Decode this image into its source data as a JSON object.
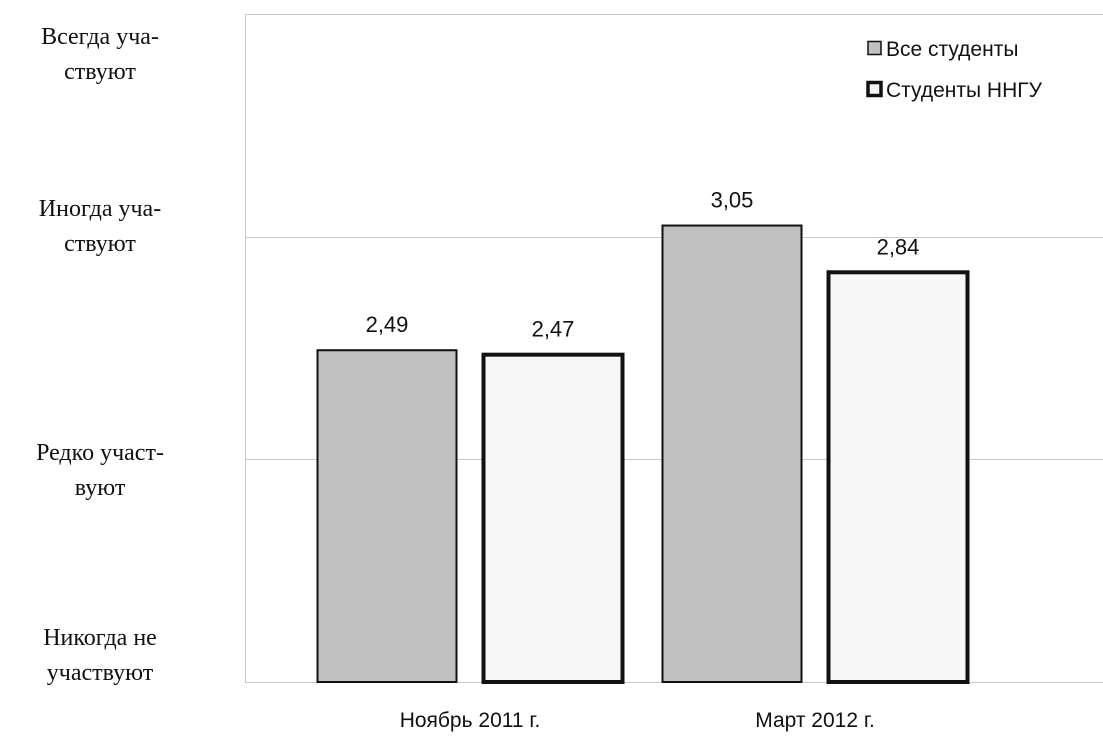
{
  "chart_data": {
    "type": "bar",
    "categories": [
      "Ноябрь 2011 г.",
      "Март 2012 г."
    ],
    "series": [
      {
        "name": "Все студенты",
        "values": [
          2.49,
          3.05
        ],
        "labels": [
          "2,49",
          "3,05"
        ],
        "fill": "#c0c0c0",
        "stroke": "#111111",
        "stroke_style": "thin"
      },
      {
        "name": "Студенты ННГУ",
        "values": [
          2.47,
          2.84
        ],
        "labels": [
          "2,47",
          "2,84"
        ],
        "fill": "#f6f6f6",
        "stroke": "#111111",
        "stroke_style": "thick"
      }
    ],
    "y_ticks": [
      {
        "value": 4,
        "lines": [
          "Всегда уча-",
          "ствуют"
        ]
      },
      {
        "value": 3,
        "lines": [
          "Иногда уча-",
          "ствуют"
        ]
      },
      {
        "value": 2,
        "lines": [
          "Редко участ-",
          "вуют"
        ]
      },
      {
        "value": 1,
        "lines": [
          "Никогда не",
          "участвуют"
        ]
      }
    ],
    "ylim": [
      1,
      4
    ],
    "grid": true,
    "grid_color": "#c8c8c8",
    "legend_position": "top-right"
  }
}
